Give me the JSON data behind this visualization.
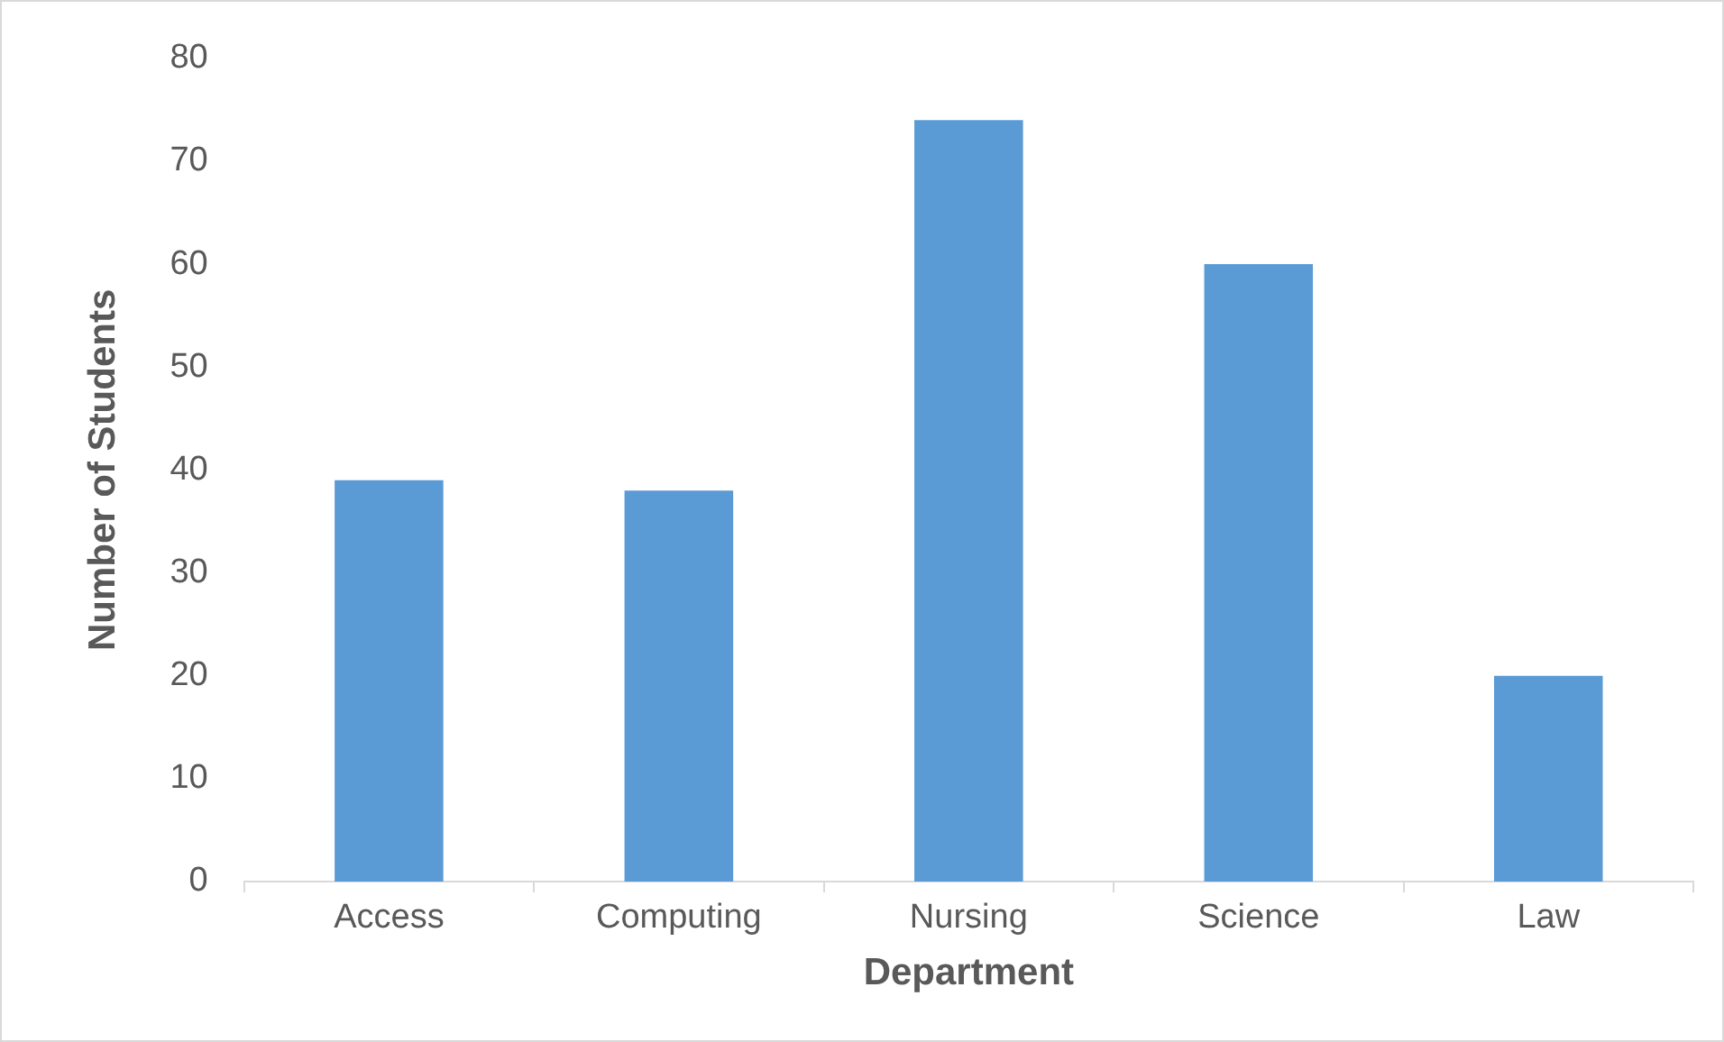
{
  "chart_data": {
    "type": "bar",
    "xlabel": "Department",
    "ylabel": "Number of Students",
    "categories": [
      "Access",
      "Computing",
      "Nursing",
      "Science",
      "Law"
    ],
    "values": [
      39,
      38,
      74,
      60,
      20
    ],
    "color": "#5b9bd5",
    "ylim": [
      0,
      80
    ],
    "yticks": [
      0,
      10,
      20,
      30,
      40,
      50,
      60,
      70,
      80
    ],
    "grid": false
  }
}
